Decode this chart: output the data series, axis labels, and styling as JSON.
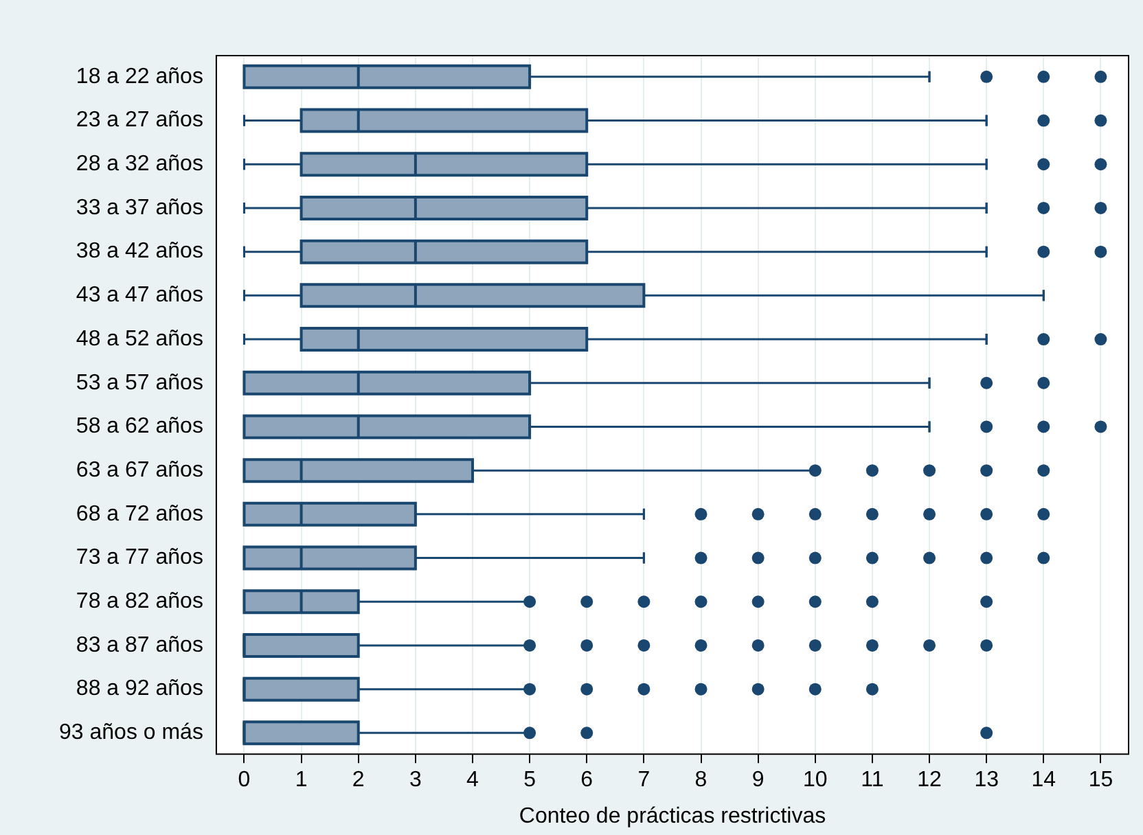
{
  "chart_data": {
    "type": "box",
    "orientation": "horizontal",
    "xlabel": "Conteo de prácticas restrictivas",
    "categories": [
      "18 a 22 años",
      "23 a 27 años",
      "28 a 32 años",
      "33 a 37 años",
      "38 a 42 años",
      "43 a 47 años",
      "48 a 52 años",
      "53 a 57 años",
      "58 a 62 años",
      "63 a 67 años",
      "68 a 72 años",
      "73 a 77 años",
      "78 a 82 años",
      "83 a 87 años",
      "88 a 92 años",
      "93 años o más"
    ],
    "color": "#8ea5bb",
    "boxes": [
      {
        "low": 0,
        "q1": 0,
        "median": 2,
        "q3": 5,
        "high": 12,
        "outliers": [
          13,
          14,
          15
        ]
      },
      {
        "low": 0,
        "q1": 1,
        "median": 2,
        "q3": 6,
        "high": 13,
        "outliers": [
          14,
          15
        ]
      },
      {
        "low": 0,
        "q1": 1,
        "median": 3,
        "q3": 6,
        "high": 13,
        "outliers": [
          14,
          15
        ]
      },
      {
        "low": 0,
        "q1": 1,
        "median": 3,
        "q3": 6,
        "high": 13,
        "outliers": [
          14,
          15
        ]
      },
      {
        "low": 0,
        "q1": 1,
        "median": 3,
        "q3": 6,
        "high": 13,
        "outliers": [
          14,
          15
        ]
      },
      {
        "low": 0,
        "q1": 1,
        "median": 3,
        "q3": 7,
        "high": 14
      },
      {
        "low": 0,
        "q1": 1,
        "median": 2,
        "q3": 6,
        "high": 13,
        "outliers": [
          14,
          15
        ]
      },
      {
        "low": 0,
        "q1": 0,
        "median": 2,
        "q3": 5,
        "high": 12,
        "outliers": [
          13,
          14
        ]
      },
      {
        "low": 0,
        "q1": 0,
        "median": 2,
        "q3": 5,
        "high": 12,
        "outliers": [
          13,
          14,
          15
        ]
      },
      {
        "low": 0,
        "q1": 0,
        "median": 1,
        "q3": 4,
        "high": 10,
        "outliers": [
          10,
          11,
          12,
          13,
          14
        ]
      },
      {
        "low": 0,
        "q1": 0,
        "median": 1,
        "q3": 3,
        "high": 7,
        "outliers": [
          8,
          9,
          10,
          11,
          12,
          13,
          14
        ]
      },
      {
        "low": 0,
        "q1": 0,
        "median": 1,
        "q3": 3,
        "high": 7,
        "outliers": [
          8,
          9,
          10,
          11,
          12,
          13,
          14
        ]
      },
      {
        "low": 0,
        "q1": 0,
        "median": 1,
        "q3": 2,
        "high": 5,
        "outliers": [
          5,
          6,
          7,
          8,
          9,
          10,
          11,
          13
        ]
      },
      {
        "low": 0,
        "q1": 0,
        "median": 0,
        "q3": 2,
        "high": 5,
        "outliers": [
          5,
          6,
          7,
          8,
          9,
          10,
          11,
          12,
          13
        ]
      },
      {
        "low": 0,
        "q1": 0,
        "median": 0,
        "q3": 2,
        "high": 5,
        "outliers": [
          5,
          6,
          7,
          8,
          9,
          10,
          11
        ]
      },
      {
        "low": 0,
        "q1": 0,
        "median": 0,
        "q3": 2,
        "high": 5,
        "outliers": [
          5,
          6,
          13
        ]
      }
    ],
    "xlim": [
      -0.5,
      15.5
    ],
    "xticks": [
      0,
      1,
      2,
      3,
      4,
      5,
      6,
      7,
      8,
      9,
      10,
      11,
      12,
      13,
      14,
      15
    ],
    "grid": "x",
    "legend": false
  }
}
